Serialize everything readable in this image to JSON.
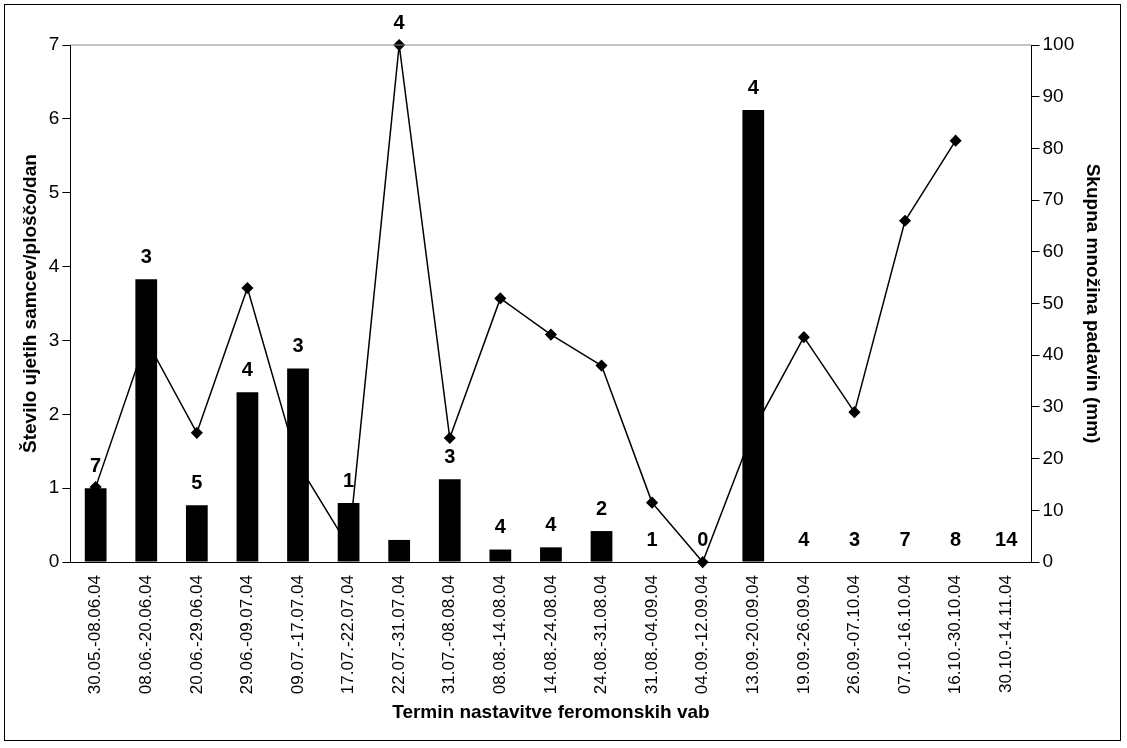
{
  "chart_data": {
    "type": "bar",
    "xlabel": "Termin nastavitve feromonskih vab",
    "ylabel": "Število ujetih samcev/ploščo/dan",
    "y2label": "Skupna množina padavin (mm)",
    "categories": [
      "30.05.-08.06.04",
      "08.06.-20.06.04",
      "20.06.-29.06.04",
      "29.06.-09.07.04",
      "09.07.-17.07.04",
      "17.07.-22.07.04",
      "22.07.-31.07.04",
      "31.07.-08.08.04",
      "08.08.-14.08.04",
      "14.08.-24.08.04",
      "24.08.-31.08.04",
      "31.08.-04.09.04",
      "04.09.-12.09.04",
      "13.09.-20.09.04",
      "19.09.-26.09.04",
      "26.09.-07.10.04",
      "07.10.-16.10.04",
      "16.10.-30.10.04",
      "30.10.-14.11.04"
    ],
    "series": [
      {
        "color": "#000000",
        "values": [
          1.0,
          3.83,
          0.77,
          2.3,
          2.62,
          0.8,
          0.3,
          1.12,
          0.17,
          0.2,
          0.42,
          0,
          0,
          6.12,
          0,
          0,
          0,
          0,
          0
        ]
      },
      {
        "type": "line",
        "axis": "y2",
        "color": "#000000",
        "marker": "diamond",
        "values": [
          14.5,
          43,
          25,
          53,
          19,
          3,
          100,
          24,
          51,
          44,
          38,
          11.5,
          0,
          25.5,
          43.5,
          29,
          66,
          81.5,
          null
        ]
      }
    ],
    "annotations": [
      {
        "text": "7",
        "x": "30.05.-08.06.04",
        "y": 1.0
      },
      {
        "text": "3",
        "x": "08.06.-20.06.04",
        "y": 3.83
      },
      {
        "text": "5",
        "x": "20.06.-29.06.04",
        "y": 0.77
      },
      {
        "text": "4",
        "x": "29.06.-09.07.04",
        "y": 2.3
      },
      {
        "text": "3",
        "x": "09.07.-17.07.04",
        "y": 2.62
      },
      {
        "text": "1",
        "x": "17.07.-22.07.04",
        "y": 0.8
      },
      {
        "text": "4",
        "x": "22.07.-31.07.04",
        "y": 7
      },
      {
        "text": "3",
        "x": "31.07.-08.08.04",
        "y": 1.12
      },
      {
        "text": "4",
        "x": "08.08.-14.08.04",
        "y": 0.17
      },
      {
        "text": "4",
        "x": "14.08.-24.08.04",
        "y": 0.2
      },
      {
        "text": "2",
        "x": "24.08.-31.08.04",
        "y": 0.42
      },
      {
        "text": "1",
        "x": "31.08.-04.09.04",
        "y": 0
      },
      {
        "text": "0",
        "x": "04.09.-12.09.04",
        "y": 0
      },
      {
        "text": "4",
        "x": "13.09.-20.09.04",
        "y": 6.12
      },
      {
        "text": "4",
        "x": "19.09.-26.09.04",
        "y": 0
      },
      {
        "text": "3",
        "x": "26.09.-07.10.04",
        "y": 0
      },
      {
        "text": "7",
        "x": "07.10.-16.10.04",
        "y": 0
      },
      {
        "text": "8",
        "x": "16.10.-30.10.04",
        "y": 0
      },
      {
        "text": "14",
        "x": "30.10.-14.11.04",
        "y": 0
      }
    ],
    "ylim": [
      0,
      7
    ],
    "yticks": [
      0,
      1,
      2,
      3,
      4,
      5,
      6,
      7
    ],
    "y2lim": [
      0,
      100
    ],
    "y2ticks": [
      0,
      10,
      20,
      30,
      40,
      50,
      60,
      70,
      80,
      90,
      100
    ],
    "grid": false,
    "legend": false
  }
}
